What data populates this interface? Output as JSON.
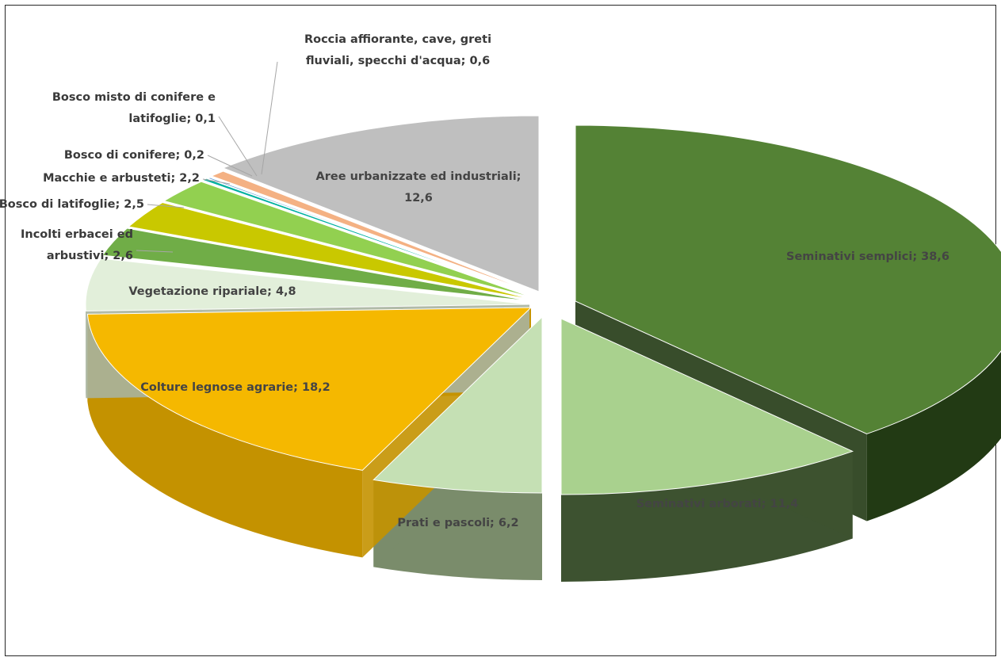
{
  "chart_data": {
    "type": "pie",
    "style": "3d-exploded",
    "title": "",
    "slices": [
      {
        "label": "Seminativi semplici",
        "value": 38.6,
        "text": "Seminativi semplici; 38,6",
        "color": "#548235",
        "side_color": "#223a14"
      },
      {
        "label": "Seminativi arborati",
        "value": 11.4,
        "text": "Seminativi arborati; 11,4",
        "color": "#a9d18e",
        "side_color": "#3d5230"
      },
      {
        "label": "Prati e pascoli",
        "value": 6.2,
        "text": "Prati e pascoli; 6,2",
        "color": "#c5e0b4",
        "side_color": "#7a8c6b"
      },
      {
        "label": "Colture legnose agrarie",
        "value": 18.2,
        "text": "Colture legnose agrarie; 18,2",
        "color": "#f5b800",
        "side_color": "#c49200"
      },
      {
        "label": "Vegetazione ripariale",
        "value": 4.8,
        "text": "Vegetazione ripariale; 4,8",
        "color": "#e2efda",
        "side_color": "#a8b49f"
      },
      {
        "label": "Incolti erbacei ed arbustivi",
        "value": 2.6,
        "text": "Incolti erbacei ed arbustivi; 2,6",
        "text_lines": [
          "Incolti erbacei ed",
          "arbustivi; 2,6"
        ],
        "color": "#70ad47",
        "side_color": "#4a7a2e"
      },
      {
        "label": "Bosco di latifoglie",
        "value": 2.5,
        "text": "Bosco di latifoglie; 2,5",
        "color": "#c9c800",
        "side_color": "#8a8900"
      },
      {
        "label": "Macchie e arbusteti",
        "value": 2.2,
        "text": "Macchie e arbusteti; 2,2",
        "color": "#92d050",
        "side_color": "#5f8c30"
      },
      {
        "label": "Bosco di conifere",
        "value": 0.2,
        "text": "Bosco di conifere; 0,2",
        "color": "#00b0a0",
        "side_color": "#007a6e"
      },
      {
        "label": "Bosco misto di conifere e latifoglie",
        "value": 0.1,
        "text": "Bosco misto di conifere e latifoglie; 0,1",
        "text_lines": [
          "Bosco misto di conifere e",
          "latifoglie; 0,1"
        ],
        "color": "#5b9bd5",
        "side_color": "#3a6a94"
      },
      {
        "label": "Roccia affiorante, cave, greti fluviali, specchi d'acqua",
        "value": 0.6,
        "text": "Roccia affiorante, cave, greti fluviali, specchi d'acqua; 0,6",
        "text_lines": [
          "Roccia affiorante, cave, greti",
          "fluviali, specchi d'acqua; 0,6"
        ],
        "color": "#f4b183",
        "side_color": "#b07a52"
      },
      {
        "label": "Aree urbanizzate ed industriali",
        "value": 12.6,
        "text": "Aree urbanizzate ed industriali; 12,6",
        "text_lines": [
          "Aree urbanizzate ed industriali;",
          "12,6"
        ],
        "color": "#bfbfbf",
        "side_color": "#7f7f7f"
      }
    ]
  }
}
